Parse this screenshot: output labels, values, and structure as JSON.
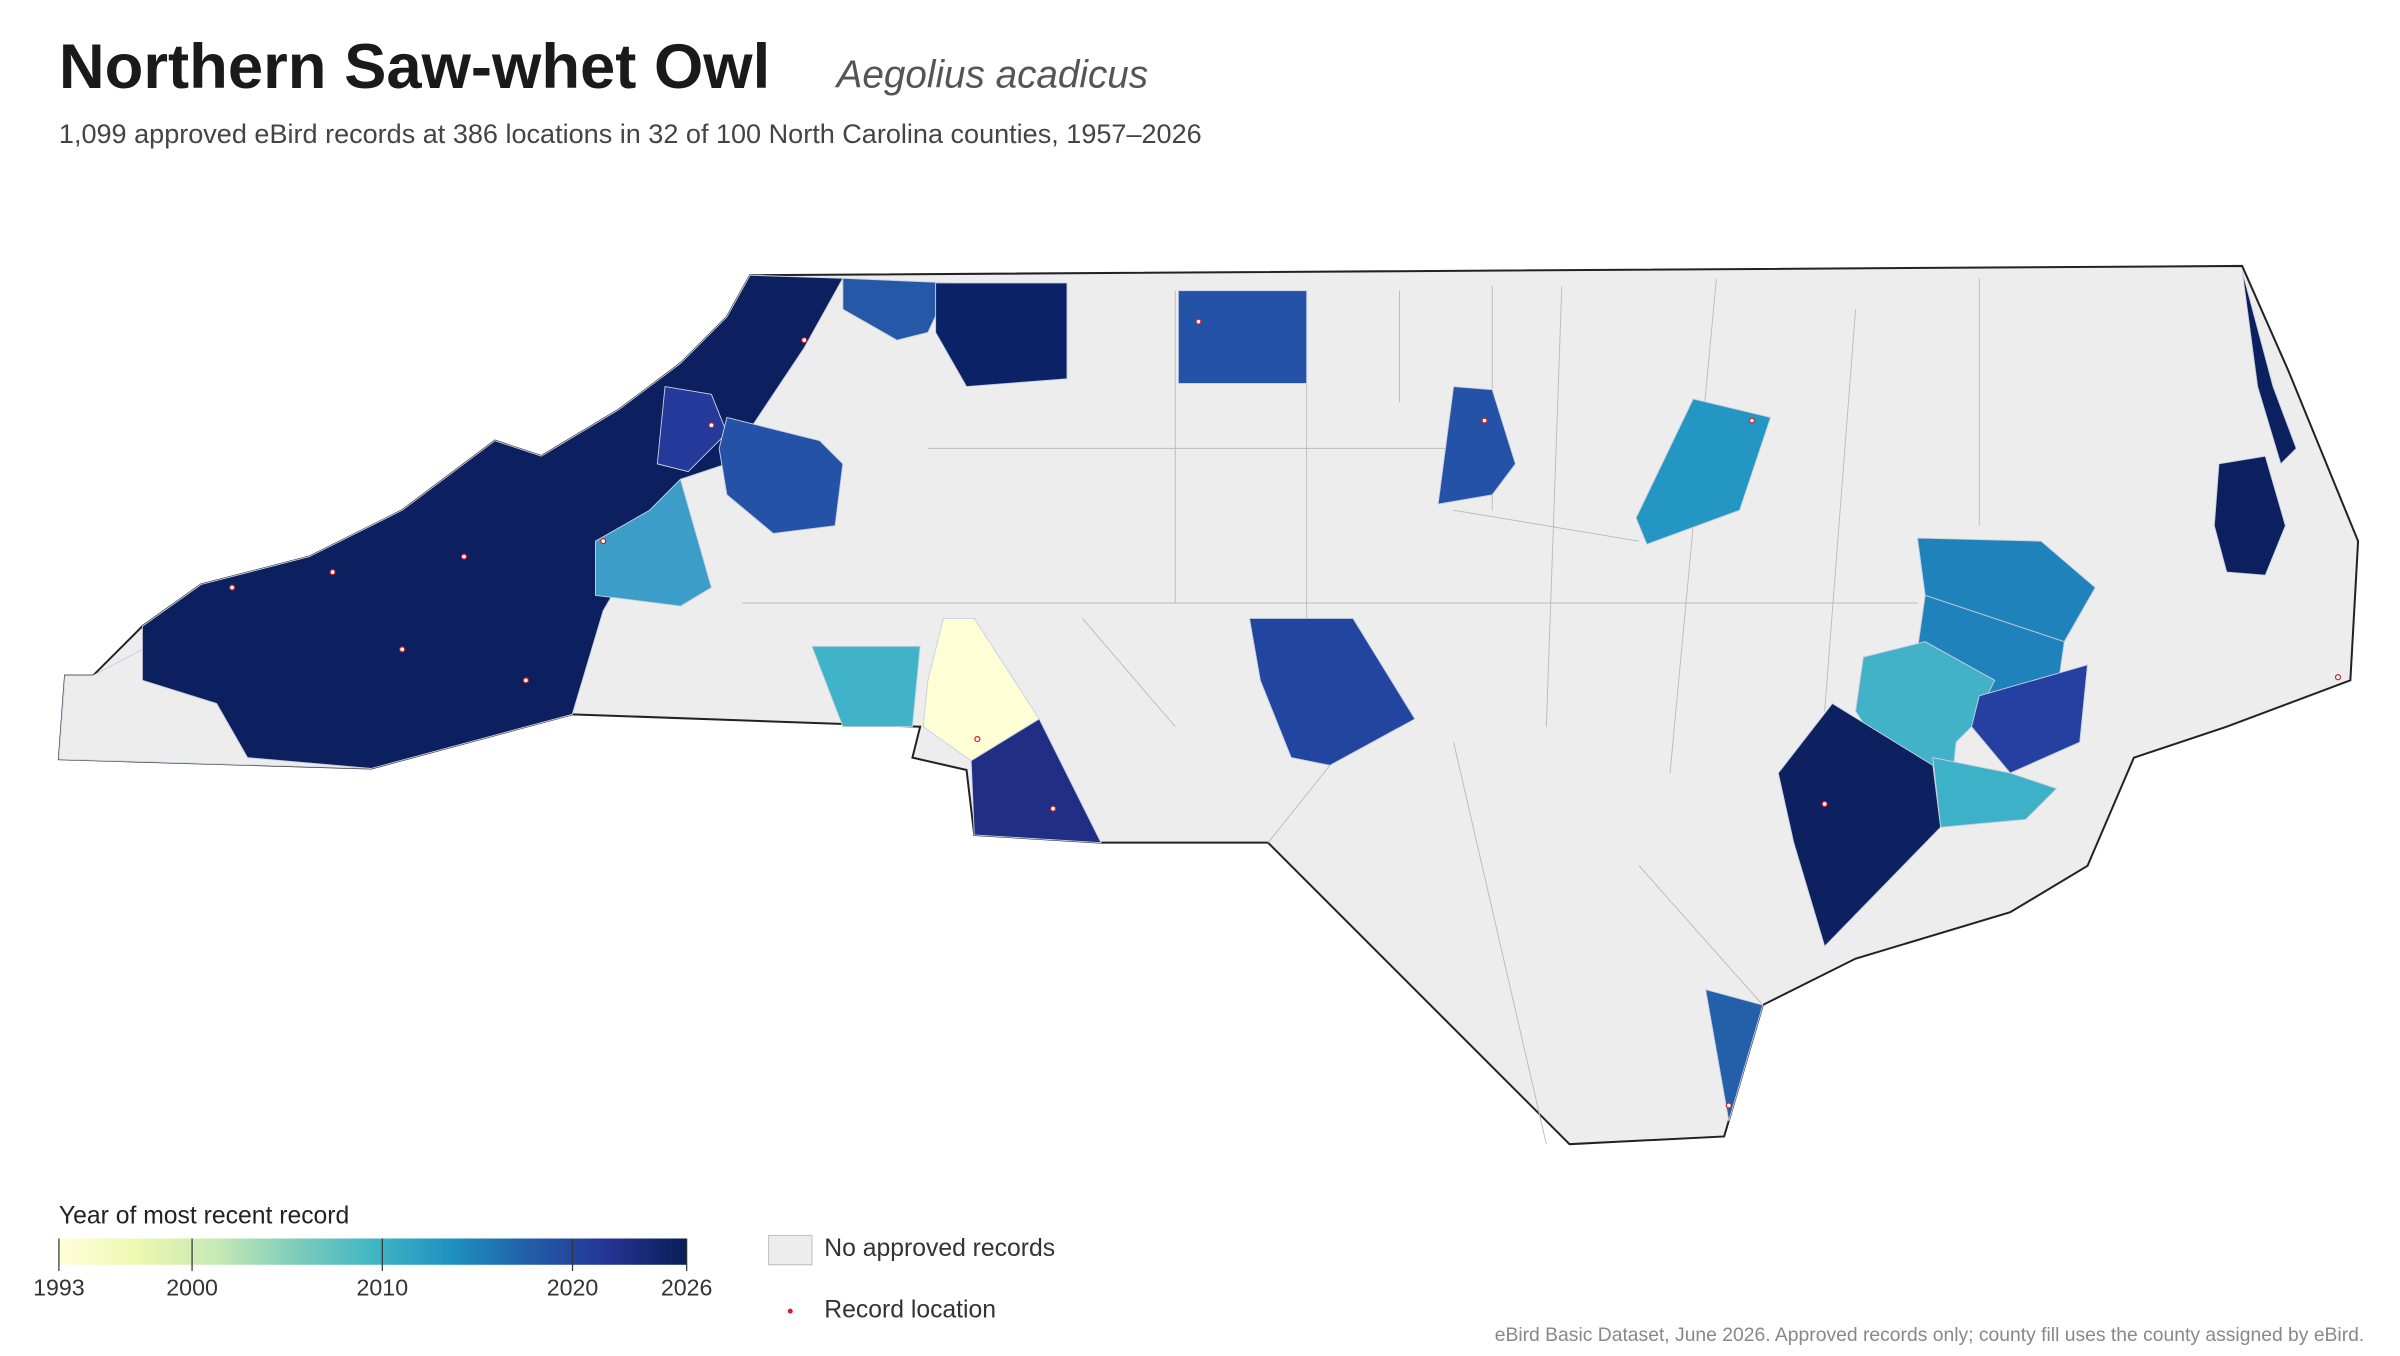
{
  "title": "Northern Saw-whet Owl",
  "scientific_name": "Aegolius acadicus",
  "subtitle": "1,099 approved eBird records at 386 locations in 32 of 100 North Carolina counties, 1957–2026",
  "legend": {
    "title": "Year of most recent record",
    "colorbar": {
      "lim": [
        1993,
        2026
      ],
      "ticks": [
        1993,
        2000,
        2010,
        2020,
        2026
      ],
      "colorscale": [
        "#ffffd9",
        "#edf8b1",
        "#c7e9b4",
        "#7fcdbb",
        "#41b6c4",
        "#1d91c0",
        "#225ea8",
        "#253494",
        "#081d58"
      ]
    },
    "no_records": "No approved records",
    "record_location": "Record location"
  },
  "source": "eBird Basic Dataset, June 2026. Approved records only; county fill uses the county assigned by eBird."
}
